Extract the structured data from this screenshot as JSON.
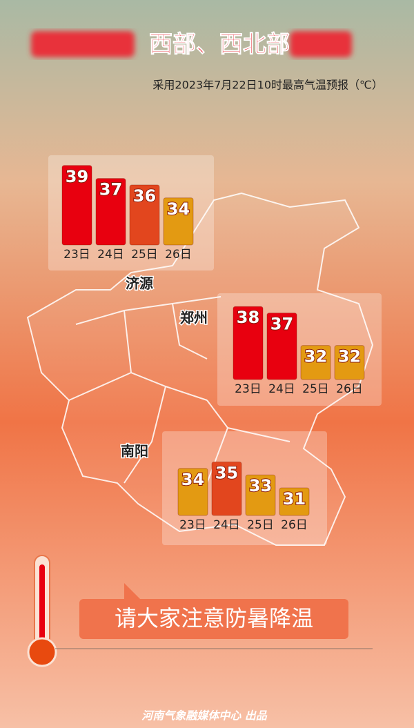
{
  "header": {
    "title": "西部、西北部",
    "subtitle": "采用2023年7月22日10时最高气温预报（℃）"
  },
  "chart_data": [
    {
      "type": "bar",
      "title": "济源",
      "categories": [
        "23日",
        "24日",
        "25日",
        "26日"
      ],
      "values": [
        39,
        37,
        36,
        34
      ],
      "colors": [
        "#e8000f",
        "#e8000f",
        "#e2461e",
        "#e39a12"
      ]
    },
    {
      "type": "bar",
      "title": "郑州",
      "categories": [
        "23日",
        "24日",
        "25日",
        "26日"
      ],
      "values": [
        38,
        37,
        32,
        32
      ],
      "colors": [
        "#e8000f",
        "#e8000f",
        "#e39a12",
        "#e39a12"
      ]
    },
    {
      "type": "bar",
      "title": "南阳",
      "categories": [
        "23日",
        "24日",
        "25日",
        "26日"
      ],
      "values": [
        34,
        35,
        33,
        31
      ],
      "colors": [
        "#e39a12",
        "#e2461e",
        "#e39a12",
        "#e39a12"
      ]
    }
  ],
  "slogan": "请大家注意防暑降温",
  "footer": "河南气象融媒体中心 出品"
}
